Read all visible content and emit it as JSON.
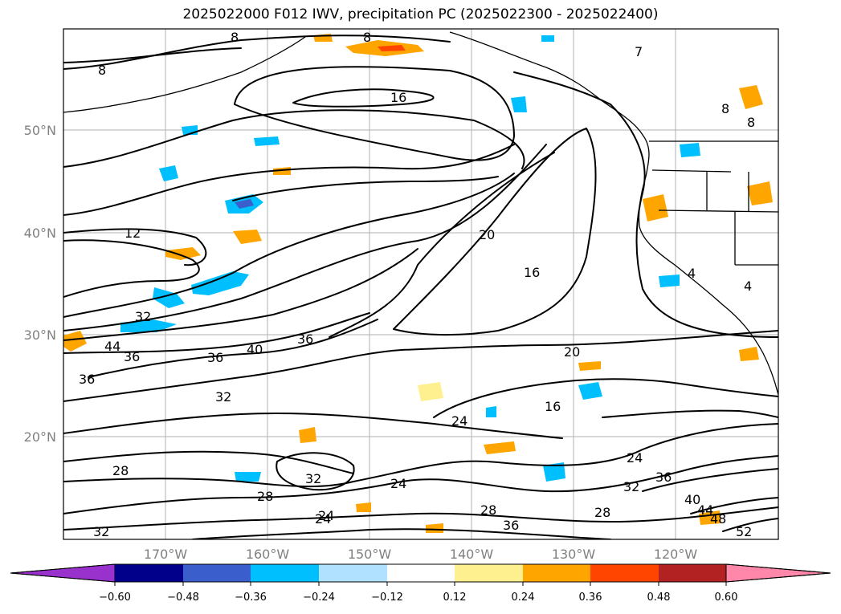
{
  "title": "2025022000 F012 IWV, precipitation PC (2025022300 - 2025022400)",
  "map": {
    "lat_ticks": [
      "50°N",
      "40°N",
      "30°N",
      "20°N"
    ],
    "lon_ticks": [
      "170°W",
      "160°W",
      "150°W",
      "140°W",
      "130°W",
      "120°W"
    ],
    "contour_labels": [
      "8",
      "8",
      "8",
      "16",
      "12",
      "32",
      "44",
      "36",
      "36",
      "36",
      "40",
      "36",
      "32",
      "20",
      "16",
      "20",
      "16",
      "24",
      "24",
      "24",
      "32",
      "28",
      "28",
      "32",
      "36",
      "28",
      "24",
      "40",
      "44",
      "48",
      "52",
      "36",
      "32",
      "28",
      "24",
      "8",
      "4",
      "4",
      "8",
      "7"
    ]
  },
  "colorbar": {
    "colors": [
      "#9932cc",
      "#00008b",
      "#3a5fcd",
      "#00bfff",
      "#b0e2ff",
      "#ffffff",
      "#fff08f",
      "#ffa500",
      "#ff4500",
      "#b22222",
      "#ff88aa"
    ],
    "tick_labels": [
      "−0.60",
      "−0.48",
      "−0.36",
      "−0.24",
      "−0.12",
      "0.12",
      "0.24",
      "0.36",
      "0.48",
      "0.60"
    ]
  }
}
